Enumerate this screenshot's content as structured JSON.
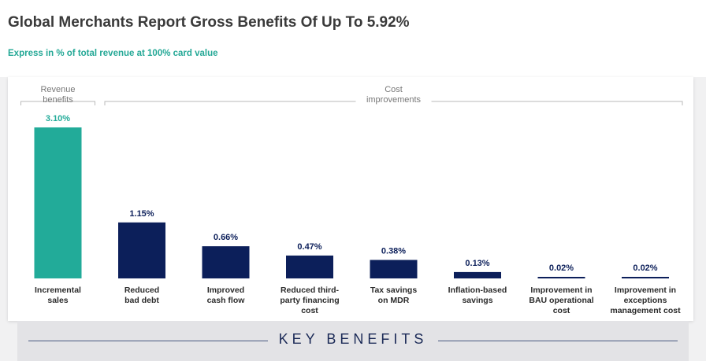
{
  "header": {
    "title": "Global Merchants Report Gross Benefits Of Up To 5.92%",
    "subtitle": "Express in % of total revenue at 100% card value"
  },
  "groups": [
    {
      "label_lines": [
        "Revenue",
        "benefits"
      ],
      "from": 0,
      "to": 0
    },
    {
      "label_lines": [
        "Cost",
        "improvements"
      ],
      "from": 1,
      "to": 7
    }
  ],
  "chart_data": {
    "type": "bar",
    "title": "Global Merchants Report Gross Benefits Of Up To 5.92%",
    "subtitle": "Express in % of total revenue at 100% card value",
    "categories": [
      [
        "Incremental",
        "sales"
      ],
      [
        "Reduced",
        "bad debt"
      ],
      [
        "Improved",
        "cash flow"
      ],
      [
        "Reduced third-",
        "party financing",
        "cost"
      ],
      [
        "Tax savings",
        "on MDR"
      ],
      [
        "Inflation-based",
        "savings"
      ],
      [
        "Improvement in",
        "BAU operational",
        "cost"
      ],
      [
        "Improvement in",
        "exceptions",
        "management cost"
      ]
    ],
    "values": [
      3.1,
      1.15,
      0.66,
      0.47,
      0.38,
      0.13,
      0.02,
      0.02
    ],
    "value_labels": [
      "3.10%",
      "1.15%",
      "0.66%",
      "0.47%",
      "0.38%",
      "0.13%",
      "0.02%",
      "0.02%"
    ],
    "xlabel": "",
    "ylabel": "",
    "ylim": [
      0,
      3.1
    ],
    "grid": false,
    "legend": "none",
    "colors": {
      "revenue": "#22ab99",
      "cost": "#0c1f5a",
      "revenue_label": "#22ab99",
      "cost_label": "#0c1f5a"
    }
  },
  "footer": {
    "banner": "KEY BENEFITS"
  }
}
